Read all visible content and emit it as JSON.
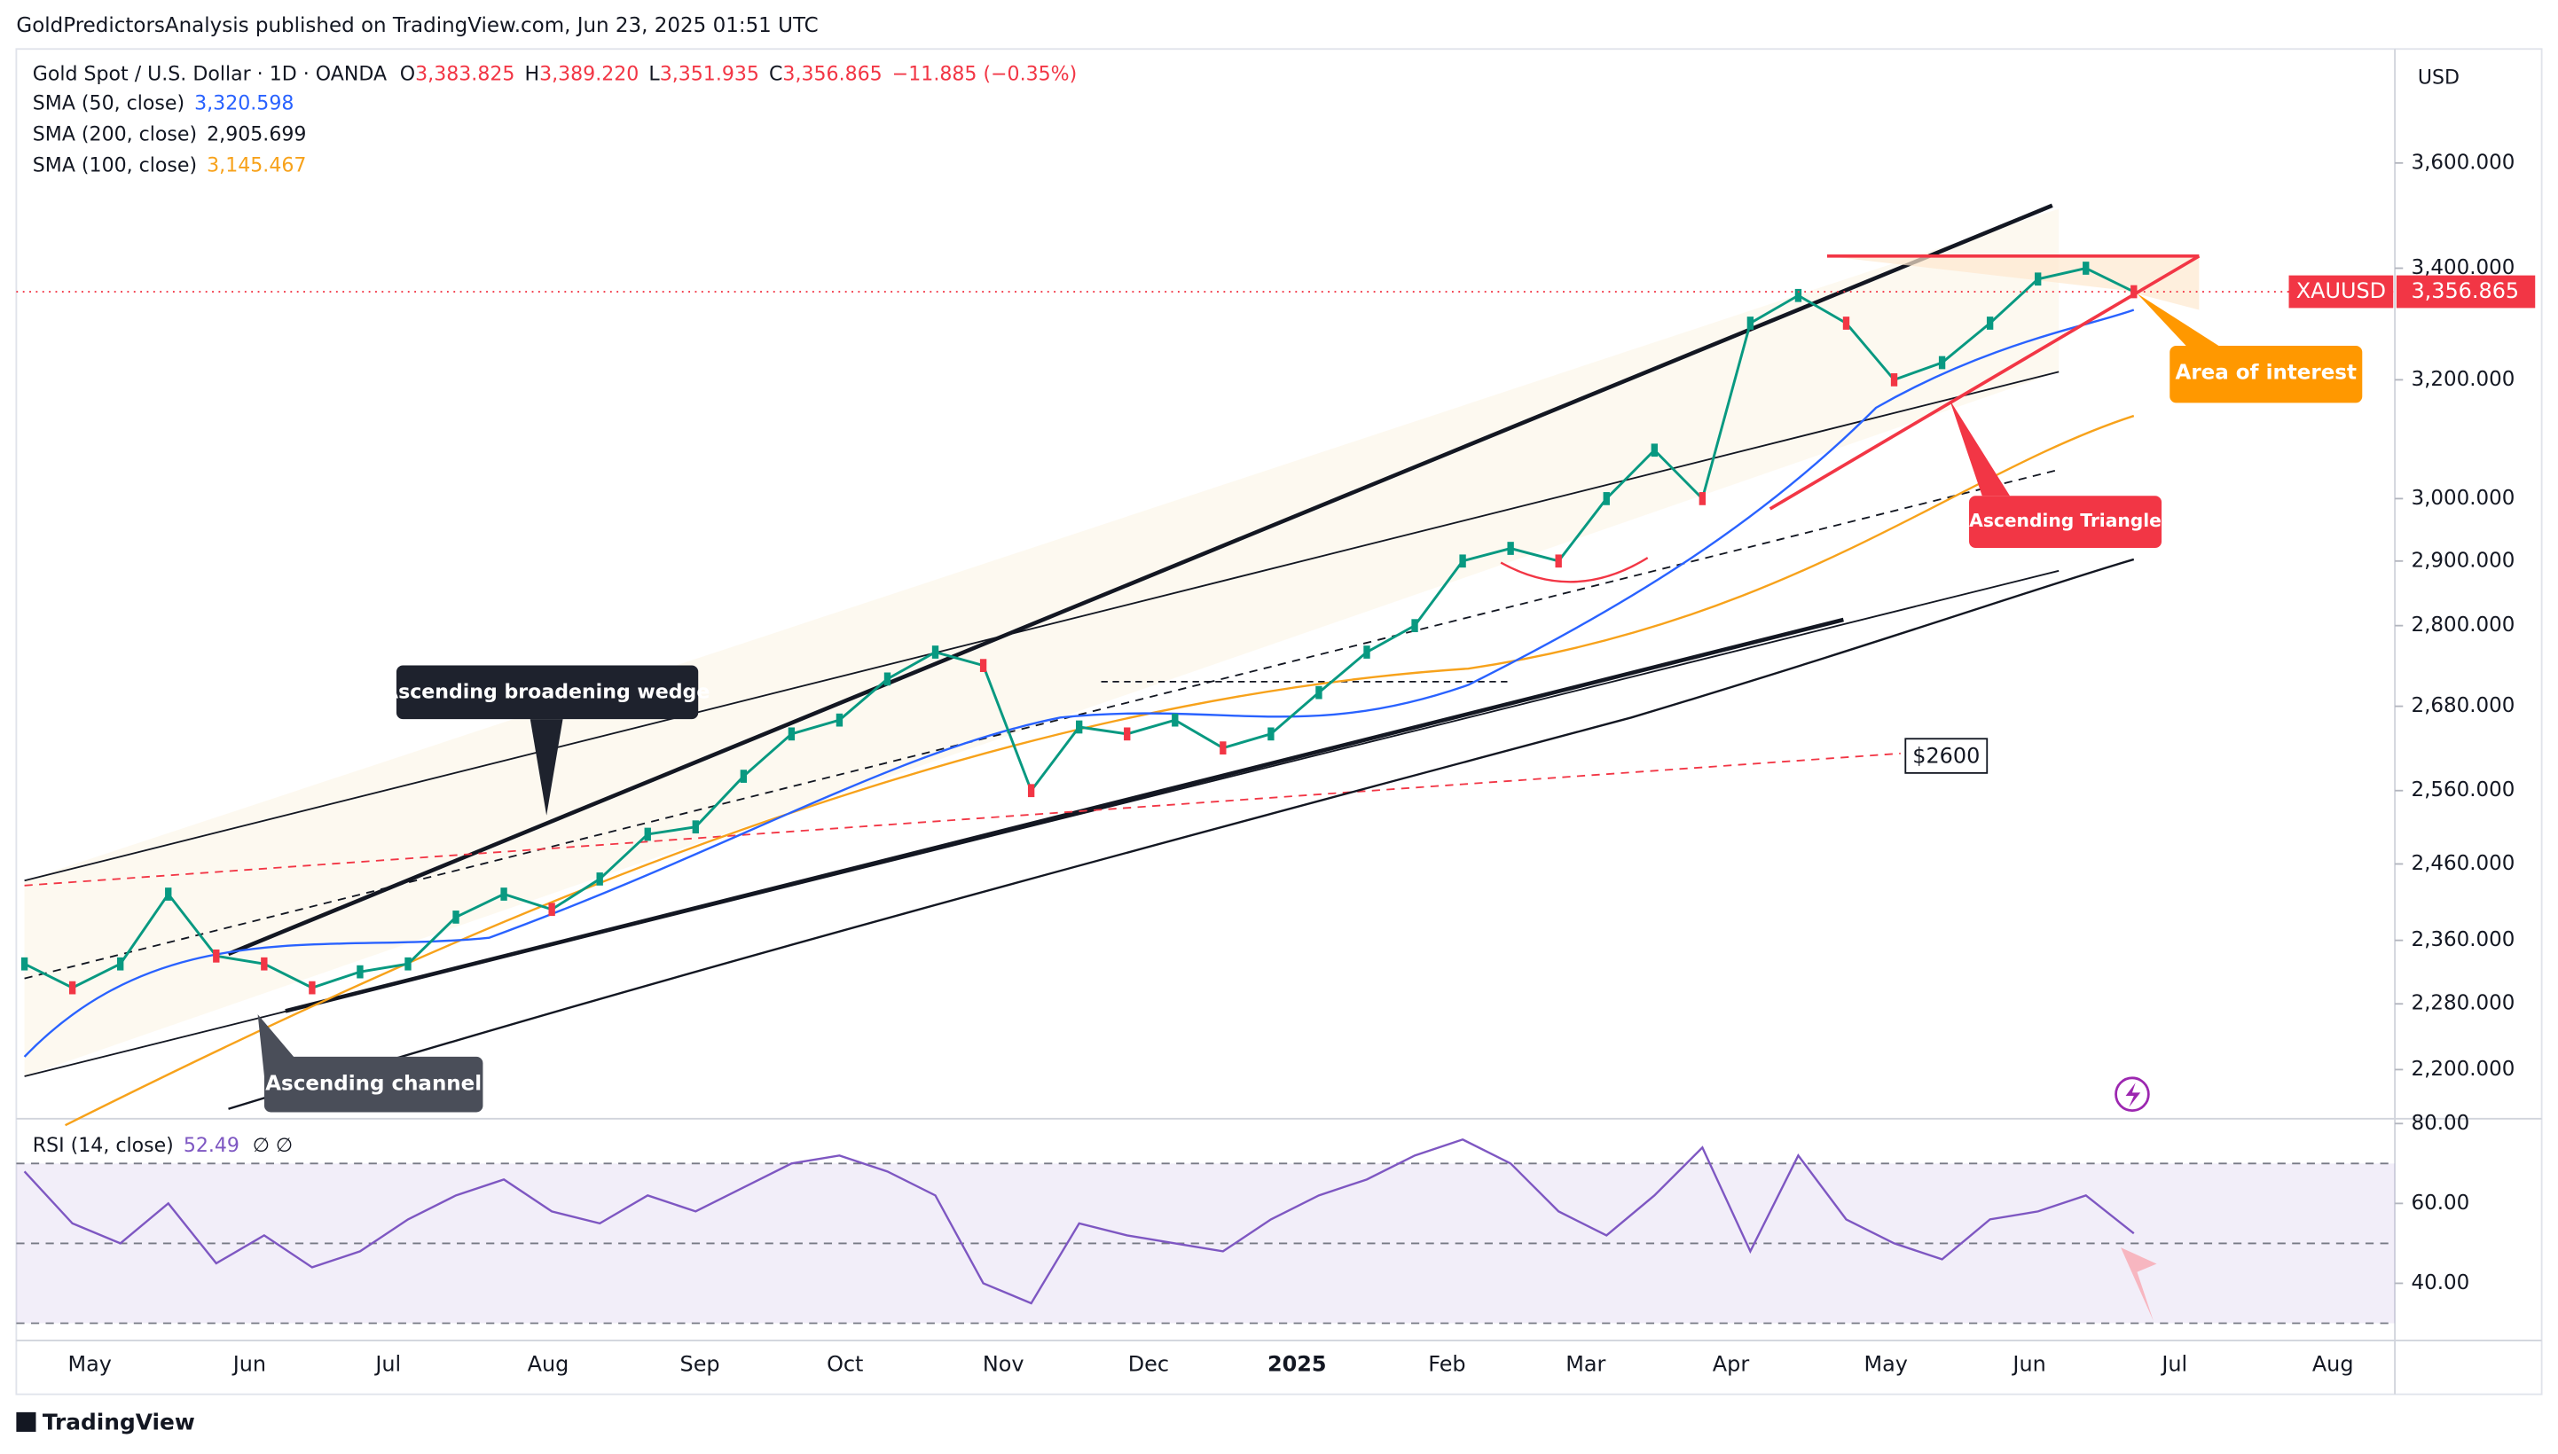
{
  "header": {
    "publisher": "GoldPredictorsAnalysis published on TradingView.com, Jun 23, 2025 01:51 UTC"
  },
  "legend": {
    "symbol": "Gold Spot / U.S. Dollar · 1D · OANDA",
    "ohlc": [
      {
        "key": "O",
        "value": "3,383.825"
      },
      {
        "key": "H",
        "value": "3,389.220"
      },
      {
        "key": "L",
        "value": "3,351.935"
      },
      {
        "key": "C",
        "value": "3,356.865"
      }
    ],
    "change": "−11.885 (−0.35%)",
    "indicators": [
      {
        "name": "SMA (50, close)",
        "value": "3,320.598",
        "color": "#2962ff"
      },
      {
        "name": "SMA (200, close)",
        "value": "2,905.699",
        "color": "#131722"
      },
      {
        "name": "SMA (100, close)",
        "value": "3,145.467",
        "color": "#f7a21b"
      }
    ]
  },
  "price_pane": {
    "currency": "USD",
    "log_scale": true,
    "ylim": [
      2144,
      3830
    ],
    "yticks": [
      {
        "value": 3600,
        "label": "3,600.000"
      },
      {
        "value": 3400,
        "label": "3,400.000"
      },
      {
        "value": 3200,
        "label": "3,200.000"
      },
      {
        "value": 3000,
        "label": "3,000.000"
      },
      {
        "value": 2900,
        "label": "2,900.000"
      },
      {
        "value": 2800,
        "label": "2,800.000"
      },
      {
        "value": 2680,
        "label": "2,680.000"
      },
      {
        "value": 2560,
        "label": "2,560.000"
      },
      {
        "value": 2460,
        "label": "2,460.000"
      },
      {
        "value": 2360,
        "label": "2,360.000"
      },
      {
        "value": 2280,
        "label": "2,280.000"
      },
      {
        "value": 2200,
        "label": "2,200.000"
      }
    ],
    "closes": [
      2330,
      2300,
      2330,
      2420,
      2340,
      2330,
      2300,
      2320,
      2330,
      2390,
      2420,
      2400,
      2440,
      2500,
      2510,
      2580,
      2640,
      2660,
      2720,
      2760,
      2740,
      2560,
      2650,
      2640,
      2660,
      2620,
      2640,
      2700,
      2760,
      2800,
      2900,
      2920,
      2900,
      3000,
      3080,
      3000,
      3300,
      3350,
      3300,
      3200,
      3230,
      3300,
      3380,
      3400,
      3356.865
    ],
    "color": "#089981",
    "last_price": {
      "symbol": "XAUUSD",
      "value": 3356.865,
      "label": "3,356.865",
      "color": "#f23645"
    }
  },
  "rsi_pane": {
    "title": "RSI (14, close)",
    "value": "52.49",
    "extra": "∅  ∅",
    "ylim": [
      26.5,
      80.4
    ],
    "yticks": [
      {
        "value": 80,
        "label": "80.00"
      },
      {
        "value": 60,
        "label": "60.00"
      },
      {
        "value": 40,
        "label": "40.00"
      }
    ],
    "bands": [
      70,
      50,
      30
    ],
    "values": [
      68,
      55,
      50,
      60,
      45,
      52,
      44,
      48,
      56,
      62,
      66,
      58,
      55,
      62,
      58,
      64,
      70,
      72,
      68,
      62,
      40,
      35,
      55,
      52,
      50,
      48,
      56,
      62,
      66,
      72,
      76,
      70,
      58,
      52,
      62,
      74,
      48,
      72,
      56,
      50,
      46,
      56,
      58,
      62,
      52.49
    ],
    "color": "#7e57c2"
  },
  "time_axis": {
    "labels": [
      "May",
      "Jun",
      "Jul",
      "Aug",
      "Sep",
      "Oct",
      "Nov",
      "Dec",
      "2025",
      "Feb",
      "Mar",
      "Apr",
      "May",
      "Jun",
      "Jul",
      "Aug"
    ]
  },
  "annotations": {
    "area": "Area of interest",
    "triangle": "Ascending Triangle",
    "wedge": "Ascending broadening wedge",
    "channel": "Ascending channel",
    "level": "$2600"
  },
  "footer": {
    "brand": "TradingView"
  }
}
